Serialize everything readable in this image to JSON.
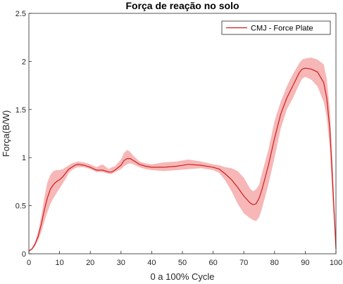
{
  "chart_data": {
    "type": "line",
    "title": "Força de reação no solo",
    "xlabel": "0 a 100% Cycle",
    "ylabel": "Força(B/W)",
    "xlim": [
      0,
      100
    ],
    "ylim": [
      0,
      2.5
    ],
    "xticks": [
      "0",
      "10",
      "20",
      "30",
      "40",
      "50",
      "60",
      "70",
      "80",
      "90",
      "100"
    ],
    "yticks": [
      "0",
      "0.5",
      "1",
      "1.5",
      "2",
      "2.5"
    ],
    "grid": false,
    "legend_position": "top-right",
    "colors": {
      "mean_line": "#cc1f1f",
      "band": "#f7b7b7",
      "axis": "#262626"
    },
    "series": [
      {
        "name": "CMJ - Force Plate",
        "x": [
          0,
          1,
          2,
          3,
          4,
          5,
          6,
          7,
          8,
          9,
          10,
          11,
          12,
          13,
          14,
          15,
          16,
          18,
          20,
          22,
          24,
          26,
          27,
          28,
          30,
          31,
          32,
          33,
          34,
          36,
          38,
          40,
          44,
          48,
          52,
          56,
          60,
          62,
          64,
          66,
          68,
          70,
          72,
          73,
          74,
          75,
          76,
          78,
          80,
          82,
          84,
          86,
          88,
          89,
          90,
          92,
          94,
          96,
          97,
          98,
          99,
          100
        ],
        "mean": [
          0.03,
          0.05,
          0.1,
          0.18,
          0.3,
          0.45,
          0.58,
          0.67,
          0.72,
          0.75,
          0.77,
          0.8,
          0.84,
          0.88,
          0.9,
          0.92,
          0.93,
          0.92,
          0.9,
          0.87,
          0.87,
          0.85,
          0.85,
          0.87,
          0.92,
          0.97,
          0.99,
          0.99,
          0.97,
          0.93,
          0.91,
          0.9,
          0.9,
          0.91,
          0.93,
          0.92,
          0.9,
          0.88,
          0.83,
          0.77,
          0.69,
          0.6,
          0.53,
          0.51,
          0.52,
          0.58,
          0.68,
          0.92,
          1.2,
          1.45,
          1.62,
          1.75,
          1.88,
          1.92,
          1.93,
          1.92,
          1.89,
          1.78,
          1.62,
          1.3,
          0.7,
          0.05
        ],
        "lower": [
          0.02,
          0.04,
          0.08,
          0.14,
          0.22,
          0.33,
          0.43,
          0.52,
          0.58,
          0.63,
          0.68,
          0.73,
          0.78,
          0.84,
          0.87,
          0.89,
          0.9,
          0.9,
          0.88,
          0.85,
          0.85,
          0.83,
          0.83,
          0.85,
          0.88,
          0.91,
          0.93,
          0.94,
          0.93,
          0.9,
          0.88,
          0.87,
          0.86,
          0.87,
          0.88,
          0.89,
          0.87,
          0.84,
          0.76,
          0.65,
          0.52,
          0.42,
          0.37,
          0.35,
          0.34,
          0.38,
          0.48,
          0.72,
          1.0,
          1.3,
          1.5,
          1.62,
          1.76,
          1.82,
          1.84,
          1.81,
          1.74,
          1.58,
          1.42,
          1.1,
          0.5,
          0.03
        ],
        "upper": [
          0.04,
          0.06,
          0.12,
          0.23,
          0.38,
          0.58,
          0.74,
          0.82,
          0.86,
          0.87,
          0.87,
          0.88,
          0.9,
          0.92,
          0.94,
          0.95,
          0.96,
          0.95,
          0.93,
          0.9,
          0.93,
          0.88,
          0.9,
          0.91,
          0.98,
          1.05,
          1.08,
          1.06,
          1.02,
          0.96,
          0.94,
          0.93,
          0.95,
          0.96,
          0.98,
          0.96,
          0.93,
          0.92,
          0.9,
          0.89,
          0.86,
          0.79,
          0.68,
          0.65,
          0.67,
          0.72,
          0.85,
          1.08,
          1.38,
          1.58,
          1.74,
          1.87,
          1.98,
          2.02,
          2.03,
          2.04,
          2.02,
          1.97,
          1.82,
          1.5,
          0.9,
          0.07
        ]
      }
    ]
  }
}
